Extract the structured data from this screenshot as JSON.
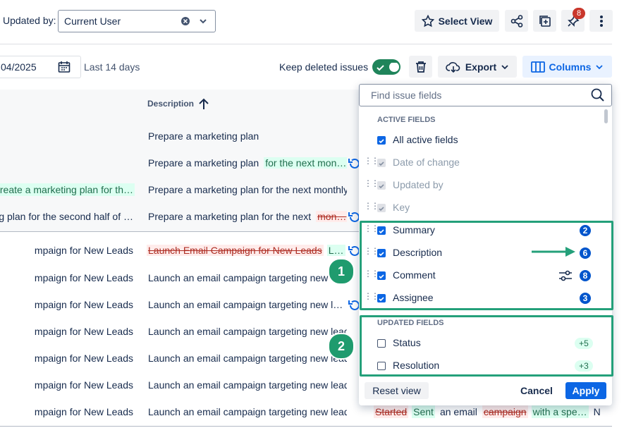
{
  "toolbar": {
    "updated_by_label": "Updated by:",
    "updated_by_value": "Current User",
    "select_view": "Select View",
    "notification_count": 8
  },
  "filters": {
    "date": "04/2025",
    "range": "Last 14 days",
    "keep_deleted": "Keep deleted issues",
    "export": "Export",
    "columns": "Columns"
  },
  "table": {
    "header": "Description",
    "rows": [
      {
        "left": [],
        "desc": [
          {
            "text": "Prepare a marketing plan",
            "style": "plain"
          }
        ],
        "restore": false
      },
      {
        "left": [],
        "desc": [
          {
            "text": "Prepare a marketing plan",
            "style": "plain"
          },
          {
            "text": "for the next mon…",
            "style": "added"
          }
        ],
        "restore": true
      },
      {
        "left": [
          {
            "text": "Create a marketing plan for th…",
            "style": "added"
          }
        ],
        "desc": [
          {
            "text": "Prepare a marketing plan for the next monthly …",
            "style": "plain"
          }
        ],
        "restore": false
      },
      {
        "left": [
          {
            "text": "g plan for the second half of …",
            "style": "plain"
          }
        ],
        "desc": [
          {
            "text": "Prepare a marketing plan for the next",
            "style": "plain"
          },
          {
            "text": "mon…",
            "style": "removed"
          }
        ],
        "restore": true
      },
      {
        "left": [
          {
            "text": "mpaign for New Leads",
            "style": "plain"
          }
        ],
        "desc": [
          {
            "text": "Launch Email Campaign for New Leads",
            "style": "removed"
          },
          {
            "text": "L…",
            "style": "added"
          }
        ],
        "restore": true
      },
      {
        "left": [
          {
            "text": "mpaign for New Leads",
            "style": "plain"
          }
        ],
        "desc": [
          {
            "text": "Launch an email campaign targeting new l…",
            "style": "plain"
          }
        ],
        "restore": false
      },
      {
        "left": [
          {
            "text": "mpaign for New Leads",
            "style": "plain"
          }
        ],
        "desc": [
          {
            "text": "Launch an email campaign targeting new l…",
            "style": "plain"
          }
        ],
        "restore": true
      },
      {
        "left": [
          {
            "text": "mpaign for New Leads",
            "style": "plain"
          }
        ],
        "desc": [
          {
            "text": "Launch an email campaign targeting new lead…",
            "style": "plain"
          }
        ],
        "restore": false
      },
      {
        "left": [
          {
            "text": "mpaign for New Leads",
            "style": "plain"
          }
        ],
        "desc": [
          {
            "text": "Launch an email campaign targeting new lead…",
            "style": "plain"
          }
        ],
        "restore": false
      },
      {
        "left": [
          {
            "text": "mpaign for New Leads",
            "style": "plain"
          }
        ],
        "desc": [
          {
            "text": "Launch an email campaign targeting new lead…",
            "style": "plain"
          }
        ],
        "restore": false
      },
      {
        "left": [
          {
            "text": "mpaign for New Leads",
            "style": "plain"
          }
        ],
        "desc": [
          {
            "text": "Launch an email campaign targeting new lead…",
            "style": "plain"
          }
        ],
        "restore": false,
        "extra": [
          {
            "text": "Started",
            "style": "removed"
          },
          {
            "text": "Sent",
            "style": "added"
          },
          {
            "text": "an email",
            "style": "plain"
          },
          {
            "text": "campaign",
            "style": "removed"
          },
          {
            "text": "with a spe…",
            "style": "added"
          },
          {
            "text": "N",
            "style": "plain"
          }
        ]
      }
    ]
  },
  "panel": {
    "search_placeholder": "Find issue fields",
    "active_heading": "ACTIVE FIELDS",
    "active_fields": [
      {
        "label": "All active fields",
        "state": "checked",
        "handle": false
      },
      {
        "label": "Date of change",
        "state": "disabled",
        "handle": true
      },
      {
        "label": "Updated by",
        "state": "disabled",
        "handle": true
      },
      {
        "label": "Key",
        "state": "disabled",
        "handle": true
      },
      {
        "label": "Summary",
        "state": "checked",
        "handle": true,
        "count": 2
      },
      {
        "label": "Description",
        "state": "checked",
        "handle": true,
        "count": 6
      },
      {
        "label": "Comment",
        "state": "checked",
        "handle": true,
        "count": 8,
        "filter": true
      },
      {
        "label": "Assignee",
        "state": "checked",
        "handle": true,
        "count": 3
      }
    ],
    "updated_heading": "UPDATED FIELDS",
    "updated_fields": [
      {
        "label": "Status",
        "state": "unchecked",
        "handle": false,
        "count": "+5"
      },
      {
        "label": "Resolution",
        "state": "unchecked",
        "handle": false,
        "count": "+3"
      }
    ],
    "reset": "Reset view",
    "cancel": "Cancel",
    "apply": "Apply"
  },
  "callouts": [
    "1",
    "2"
  ]
}
